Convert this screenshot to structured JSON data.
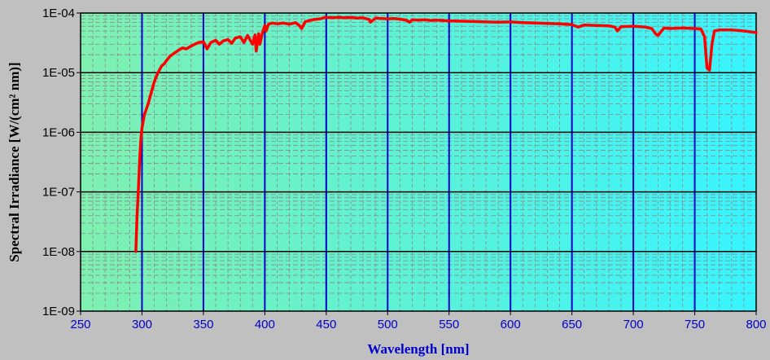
{
  "chart_data": {
    "type": "line",
    "title": "",
    "xlabel": "Wavelength [nm]",
    "ylabel": "Spectral Irradiance [W/(cm² nm)]",
    "xlim": [
      250,
      800
    ],
    "ylim": [
      1e-09,
      0.0001
    ],
    "yscale": "log",
    "x_ticks": [
      250,
      300,
      350,
      400,
      450,
      500,
      550,
      600,
      650,
      700,
      750,
      800
    ],
    "x_tick_labels": [
      "250",
      "300",
      "350",
      "400",
      "450",
      "500",
      "550",
      "600",
      "650",
      "700",
      "750",
      "800"
    ],
    "y_ticks": [
      1e-09,
      1e-08,
      1e-07,
      1e-06,
      1e-05,
      0.0001
    ],
    "y_tick_labels": [
      "1E-09",
      "1E-08",
      "1E-07",
      "1E-06",
      "1E-05",
      "1E-04"
    ],
    "grid": true,
    "legend": "none",
    "colors": {
      "line": "#ff0000",
      "major_grid_x": "#0000cc",
      "major_grid_y": "#000000",
      "minor_grid": "#888888",
      "plot_bg_left": "#7ff0b0",
      "plot_bg_right": "#38f4ff",
      "figure_bg": "#c0c0c0",
      "x_tick_text": "#0000cc",
      "xlabel_text": "#0000cc",
      "ylabel_text": "#000000"
    },
    "series": [
      {
        "x": [
          295,
          296,
          297,
          298,
          299,
          300,
          302,
          305,
          308,
          310,
          313,
          316,
          318,
          320,
          323,
          326,
          330,
          333,
          336,
          340,
          343,
          346,
          350,
          353,
          356,
          360,
          363,
          366,
          370,
          373,
          376,
          380,
          383,
          386,
          390,
          392,
          393,
          395,
          396,
          398,
          400,
          401,
          403,
          406,
          410,
          415,
          420,
          425,
          428,
          430,
          433,
          437,
          440,
          445,
          450,
          455,
          460,
          465,
          470,
          475,
          480,
          485,
          486,
          490,
          495,
          500,
          505,
          510,
          515,
          518,
          520,
          525,
          530,
          535,
          540,
          550,
          560,
          570,
          580,
          590,
          600,
          610,
          620,
          630,
          640,
          650,
          655,
          660,
          670,
          680,
          685,
          687,
          690,
          700,
          710,
          715,
          718,
          720,
          725,
          730,
          740,
          750,
          755,
          758,
          760,
          762,
          764,
          766,
          770,
          780,
          790,
          800
        ],
        "y": [
          1e-08,
          4e-08,
          1e-07,
          3e-07,
          7e-07,
          1.2e-06,
          2e-06,
          3e-06,
          5e-06,
          7e-06,
          1e-05,
          1.3e-05,
          1.4e-05,
          1.6e-05,
          1.9e-05,
          2.1e-05,
          2.4e-05,
          2.6e-05,
          2.5e-05,
          2.8e-05,
          3e-05,
          3.2e-05,
          3.3e-05,
          2.5e-05,
          3.2e-05,
          3.5e-05,
          3e-05,
          3.4e-05,
          3.6e-05,
          3.1e-05,
          3.8e-05,
          4e-05,
          3.2e-05,
          4.2e-05,
          3e-05,
          4.3e-05,
          2.3e-05,
          4.5e-05,
          3e-05,
          4.6e-05,
          6.2e-05,
          5e-05,
          6.5e-05,
          6.8e-05,
          6.6e-05,
          6.8e-05,
          6.5e-05,
          6.9e-05,
          6.2e-05,
          5.5e-05,
          7.2e-05,
          7.5e-05,
          7.8e-05,
          8e-05,
          8.5e-05,
          8.3e-05,
          8.5e-05,
          8.3e-05,
          8.4e-05,
          8.2e-05,
          8.3e-05,
          7.8e-05,
          7e-05,
          8.2e-05,
          8.1e-05,
          8e-05,
          8.1e-05,
          7.9e-05,
          7.6e-05,
          7e-05,
          7.7e-05,
          7.6e-05,
          7.7e-05,
          7.5e-05,
          7.6e-05,
          7.4e-05,
          7.3e-05,
          7.2e-05,
          7.1e-05,
          7e-05,
          7.1e-05,
          6.9e-05,
          6.8e-05,
          6.7e-05,
          6.6e-05,
          6.4e-05,
          5.8e-05,
          6.3e-05,
          6.2e-05,
          6.1e-05,
          5.8e-05,
          5e-05,
          5.9e-05,
          6e-05,
          5.8e-05,
          5.5e-05,
          4.5e-05,
          4.2e-05,
          5.6e-05,
          5.5e-05,
          5.6e-05,
          5.5e-05,
          5.4e-05,
          4e-05,
          1.2e-05,
          1.1e-05,
          3e-05,
          5e-05,
          5.2e-05,
          5.2e-05,
          5e-05,
          4.7e-05
        ]
      }
    ]
  }
}
